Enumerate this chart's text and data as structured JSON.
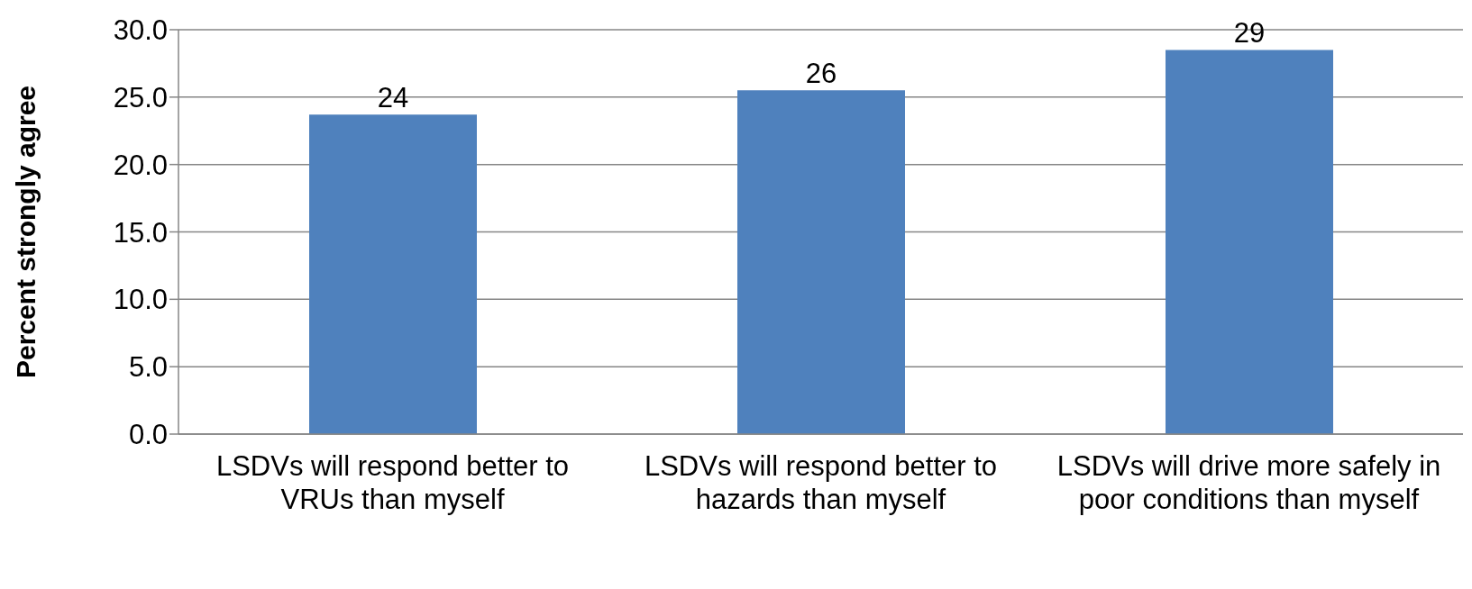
{
  "chart_data": {
    "type": "bar",
    "ylabel": "Percent strongly agree",
    "categories": [
      "LSDVs will respond better to VRUs than myself",
      "LSDVs will respond better to hazards than myself",
      "LSDVs will drive more safely in poor conditions than myself"
    ],
    "values": [
      23.7,
      25.5,
      28.5
    ],
    "value_labels": [
      "24",
      "26",
      "29"
    ],
    "color": "#4f81bd",
    "ylim": [
      0,
      30
    ],
    "yticks": [
      {
        "value": 0,
        "label": "0.0"
      },
      {
        "value": 5,
        "label": "5.0"
      },
      {
        "value": 10,
        "label": "10.0"
      },
      {
        "value": 15,
        "label": "15.0"
      },
      {
        "value": 20,
        "label": "20.0"
      },
      {
        "value": 25,
        "label": "25.0"
      },
      {
        "value": 30,
        "label": "30.0"
      }
    ],
    "grid": "y",
    "legend": false
  }
}
